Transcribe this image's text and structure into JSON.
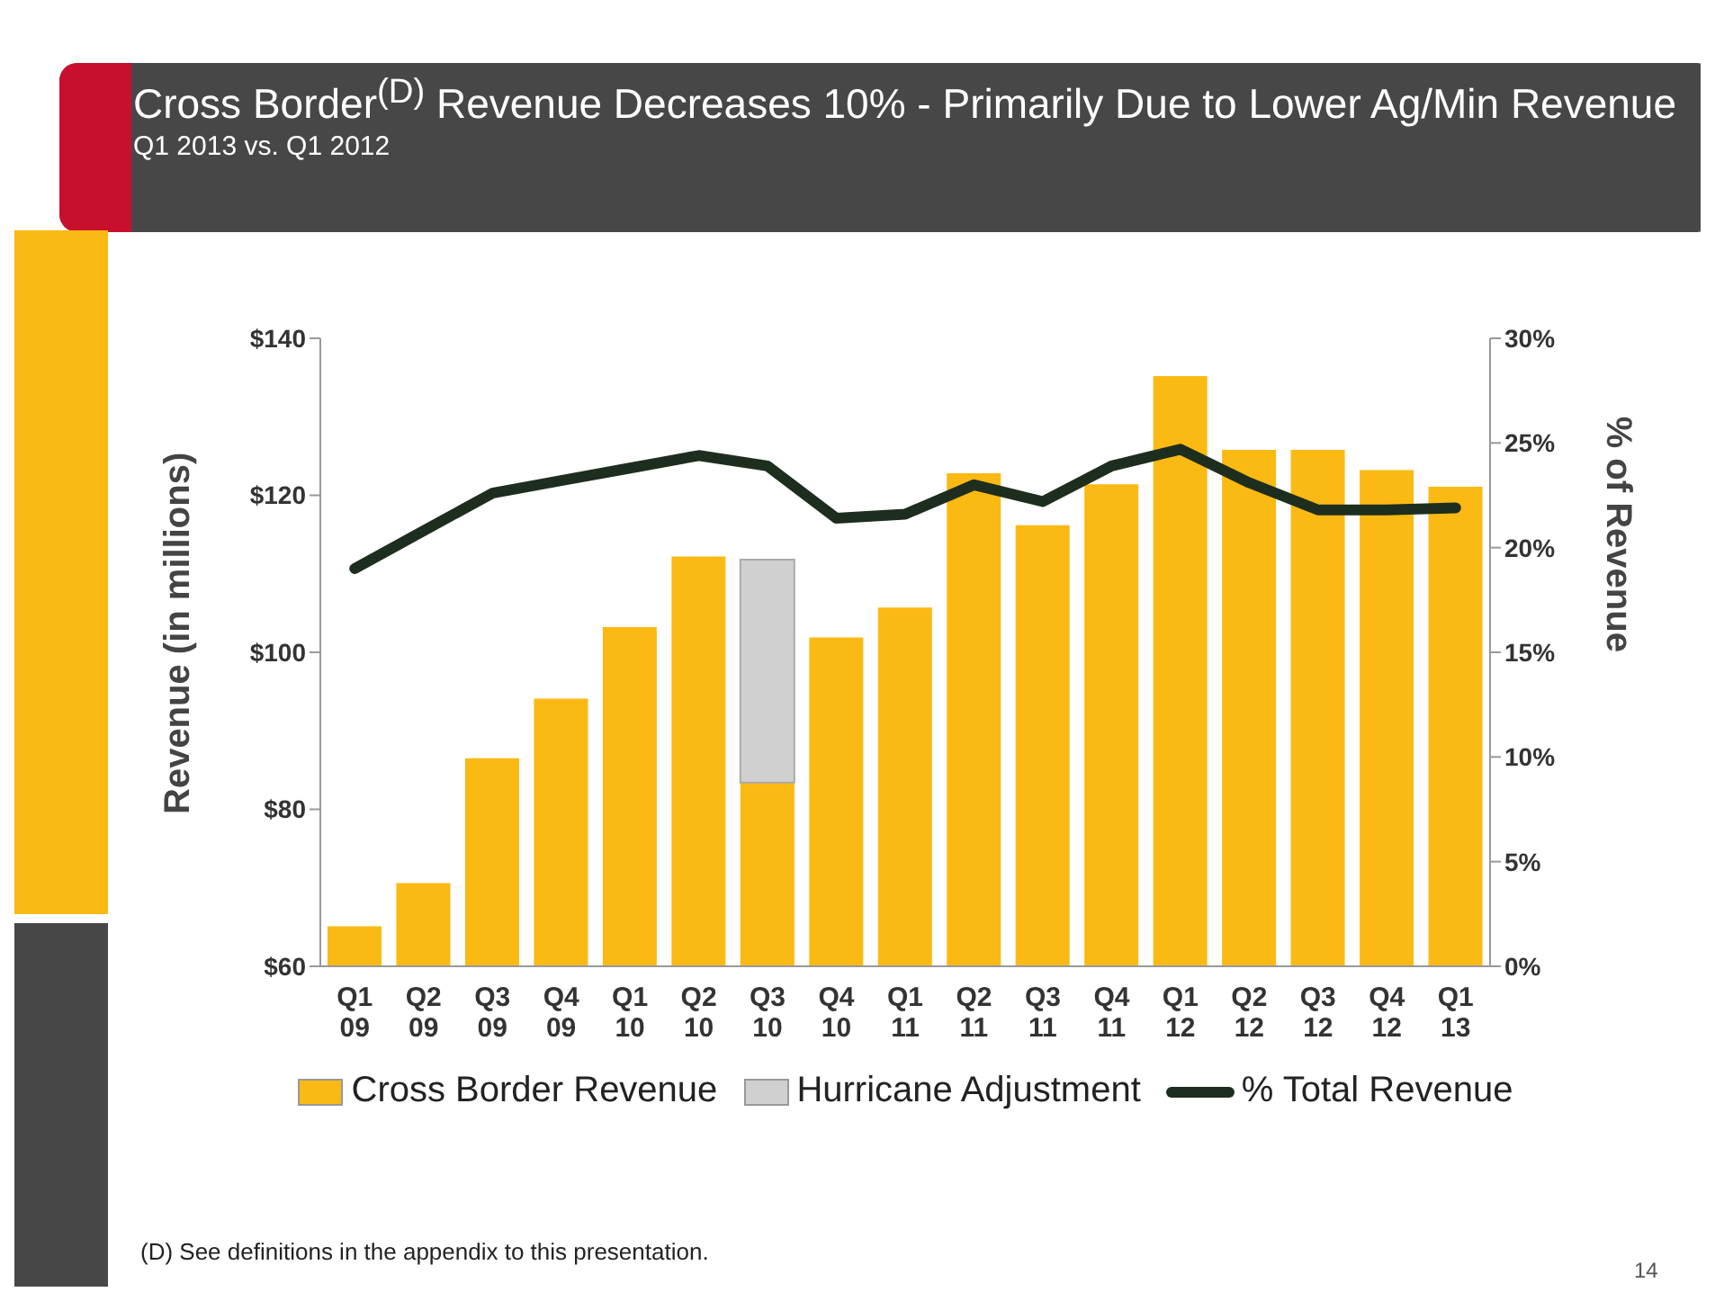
{
  "chart_data": {
    "type": "bar",
    "title": "Cross Border$^{(D)}$ Revenue Decreases 10% - Primarily Due to Lower Ag/Min Revenue",
    "subtitle": "Q1 2013 vs. Q1 2012",
    "ylabel": "Revenue (in millions)",
    "y2label": "% of Revenue",
    "categories": [
      "Q1 09",
      "Q2 09",
      "Q3 09",
      "Q4 09",
      "Q1 10",
      "Q2 10",
      "Q3 10",
      "Q4 10",
      "Q1 11",
      "Q2 11",
      "Q3 11",
      "Q4 11",
      "Q1 12",
      "Q2 12",
      "Q3 12",
      "Q4 12",
      "Q1 13"
    ],
    "series": [
      {
        "name": "Cross Border Revenue",
        "color": "#fbb913",
        "values": [
          65.1,
          70.6,
          86.5,
          94.1,
          103.2,
          112.2,
          83.4,
          101.9,
          105.7,
          122.8,
          116.2,
          121.4,
          135.2,
          125.8,
          125.8,
          123.2,
          121.1
        ]
      },
      {
        "name": "Hurricane Adjustment",
        "color": "#d0d0d0",
        "base": [
          null,
          null,
          null,
          null,
          null,
          null,
          83.4,
          null,
          null,
          null,
          null,
          null,
          null,
          null,
          null,
          null,
          null
        ],
        "values": [
          null,
          null,
          null,
          null,
          null,
          null,
          28.4,
          null,
          null,
          null,
          null,
          null,
          null,
          null,
          null,
          null,
          null
        ]
      },
      {
        "name": "% Total Revenue",
        "type": "line",
        "axis": "y2",
        "color": "#1e2e1e",
        "values": [
          19.0,
          20.8,
          22.6,
          23.2,
          23.8,
          24.4,
          23.9,
          21.4,
          21.6,
          23.0,
          22.2,
          23.9,
          24.7,
          23.1,
          21.8,
          21.8,
          21.9
        ]
      }
    ],
    "ylim": [
      60,
      140
    ],
    "yticks": [
      {
        "value": 60,
        "label": "$60"
      },
      {
        "value": 80,
        "label": "$80"
      },
      {
        "value": 100,
        "label": "$100"
      },
      {
        "value": 120,
        "label": "$120"
      },
      {
        "value": 140,
        "label": "$140"
      }
    ],
    "y2lim": [
      0,
      30
    ],
    "y2ticks": [
      {
        "value": 0,
        "label": "0%"
      },
      {
        "value": 5,
        "label": "5%"
      },
      {
        "value": 10,
        "label": "10%"
      },
      {
        "value": 15,
        "label": "15%"
      },
      {
        "value": 20,
        "label": "20%"
      },
      {
        "value": 25,
        "label": "25%"
      },
      {
        "value": 30,
        "label": "30%"
      }
    ],
    "legend": "bottom",
    "marker": "none",
    "line_style": "solid",
    "annotations": [
      "(D) See definitions in the appendix to this presentation.",
      "14"
    ]
  }
}
